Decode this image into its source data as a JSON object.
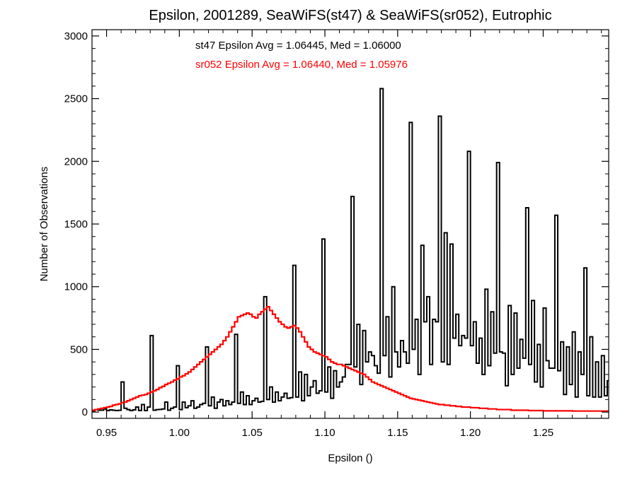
{
  "chart_data": {
    "type": "histogram",
    "title": "Epsilon, 2001289, SeaWiFS(st47) & SeaWiFS(sr052), Eutrophic",
    "xlabel": "Epsilon ()",
    "ylabel": "Number of Observations",
    "xlim": [
      0.94,
      1.295
    ],
    "ylim": [
      -50,
      3050
    ],
    "x_ticks": [
      0.95,
      1.0,
      1.05,
      1.1,
      1.15,
      1.2,
      1.25
    ],
    "x_tick_labels": [
      "0.95",
      "1.00",
      "1.05",
      "1.10",
      "1.15",
      "1.20",
      "1.25"
    ],
    "y_ticks": [
      0,
      500,
      1000,
      1500,
      2000,
      2500,
      3000
    ],
    "y_tick_labels": [
      "0",
      "500",
      "1000",
      "1500",
      "2000",
      "2500",
      "3000"
    ],
    "annotations": [
      {
        "text": "st47 Epsilon Avg = 1.06445, Med = 1.06000",
        "color": "#000000"
      },
      {
        "text": "sr052 Epsilon Avg = 1.06440, Med = 1.05976",
        "color": "#ff0000"
      }
    ],
    "series": [
      {
        "name": "st47",
        "color": "#000000",
        "style": "step",
        "bin_width": 0.002,
        "x_start": 0.94,
        "values": [
          10,
          20,
          15,
          15,
          25,
          12,
          18,
          15,
          12,
          14,
          240,
          30,
          20,
          12,
          18,
          40,
          13,
          60,
          12,
          40,
          610,
          15,
          20,
          21,
          25,
          80,
          15,
          30,
          40,
          370,
          20,
          80,
          35,
          50,
          90,
          30,
          40,
          60,
          70,
          520,
          50,
          120,
          30,
          80,
          100,
          50,
          90,
          60,
          80,
          620,
          70,
          160,
          60,
          130,
          60,
          90,
          110,
          80,
          85,
          920,
          100,
          200,
          80,
          160,
          90,
          120,
          150,
          110,
          115,
          1170,
          120,
          320,
          90,
          300,
          130,
          200,
          250,
          150,
          170,
          1380,
          160,
          360,
          110,
          330,
          200,
          240,
          280,
          380,
          380,
          1720,
          360,
          700,
          220,
          650,
          400,
          480,
          450,
          370,
          310,
          2580,
          450,
          760,
          280,
          1000,
          480,
          360,
          570,
          480,
          390,
          2310,
          500,
          740,
          300,
          1330,
          720,
          920,
          380,
          740,
          720,
          2360,
          400,
          1430,
          380,
          1340,
          590,
          780,
          530,
          610,
          590,
          2080,
          530,
          720,
          390,
          590,
          300,
          980,
          370,
          800,
          470,
          1990,
          480,
          470,
          210,
          850,
          300,
          790,
          350,
          580,
          430,
          1630,
          380,
          890,
          240,
          540,
          200,
          830,
          410,
          350,
          350,
          1570,
          330,
          560,
          140,
          520,
          220,
          640,
          120,
          480,
          300,
          1150,
          130,
          600,
          120,
          400,
          120,
          450,
          130,
          250,
          270,
          990,
          160,
          250,
          120,
          150,
          80,
          350,
          100,
          150,
          100,
          650,
          100,
          250,
          30,
          250,
          50,
          380,
          20,
          80,
          100,
          510,
          40,
          250,
          25,
          320,
          30,
          200,
          20,
          80,
          40,
          350,
          30,
          210,
          15,
          100,
          30,
          110,
          20,
          40,
          20,
          330,
          20,
          120,
          15,
          100,
          20,
          80,
          15,
          40,
          15,
          200,
          15,
          100,
          10,
          80,
          15,
          40,
          10,
          25,
          15,
          140,
          15,
          60,
          10,
          50,
          10,
          60,
          10,
          20,
          10,
          120,
          15,
          30,
          10,
          20,
          10,
          30,
          10,
          20,
          10,
          80,
          15,
          30,
          10,
          20,
          10,
          30,
          10,
          20,
          10,
          70,
          10,
          25,
          10,
          20,
          10,
          30,
          10,
          20,
          10,
          60,
          10,
          20,
          10,
          10,
          10,
          20,
          10,
          10,
          10,
          50,
          10,
          10,
          10,
          10,
          10,
          10,
          10,
          10,
          10,
          40,
          10,
          10,
          10,
          10,
          10,
          10,
          10,
          10,
          10,
          40,
          10,
          10,
          10,
          10,
          10,
          10,
          10,
          10,
          10,
          30,
          10,
          10,
          10,
          10,
          10,
          10,
          10,
          10,
          10,
          30,
          10,
          10,
          10,
          10,
          10,
          10,
          10,
          10,
          10,
          40,
          10,
          10,
          10,
          10,
          10,
          10,
          10,
          10,
          10,
          40
        ]
      },
      {
        "name": "sr052",
        "color": "#ff0000",
        "style": "step",
        "bin_width": 0.002,
        "x_start": 0.94,
        "values": [
          15,
          20,
          25,
          30,
          35,
          40,
          45,
          55,
          60,
          65,
          75,
          80,
          90,
          100,
          110,
          120,
          130,
          135,
          140,
          150,
          160,
          170,
          180,
          195,
          205,
          220,
          230,
          240,
          255,
          265,
          280,
          290,
          305,
          320,
          340,
          360,
          380,
          400,
          420,
          440,
          460,
          480,
          500,
          520,
          540,
          570,
          600,
          640,
          680,
          720,
          760,
          770,
          780,
          790,
          780,
          760,
          750,
          780,
          800,
          820,
          840,
          810,
          780,
          750,
          720,
          700,
          680,
          670,
          680,
          690,
          670,
          640,
          600,
          560,
          520,
          500,
          480,
          470,
          460,
          450,
          440,
          420,
          400,
          390,
          380,
          380,
          370,
          360,
          350,
          340,
          330,
          320,
          310,
          300,
          280,
          260,
          240,
          230,
          220,
          210,
          200,
          190,
          180,
          170,
          160,
          150,
          140,
          130,
          120,
          110,
          105,
          100,
          95,
          90,
          85,
          80,
          75,
          70,
          65,
          60,
          60,
          55,
          55,
          50,
          50,
          45,
          45,
          40,
          40,
          40,
          35,
          35,
          35,
          30,
          30,
          30,
          25,
          25,
          25,
          20,
          20,
          20,
          20,
          20,
          15,
          15,
          15,
          15,
          15,
          15,
          12,
          12,
          12,
          12,
          12,
          10,
          10,
          10,
          10,
          10,
          10,
          10,
          10,
          10,
          10,
          8,
          8,
          8,
          8,
          8,
          8,
          8,
          8,
          8,
          8,
          8,
          8,
          8,
          8,
          8,
          8,
          8,
          8,
          8,
          8
        ]
      }
    ]
  }
}
